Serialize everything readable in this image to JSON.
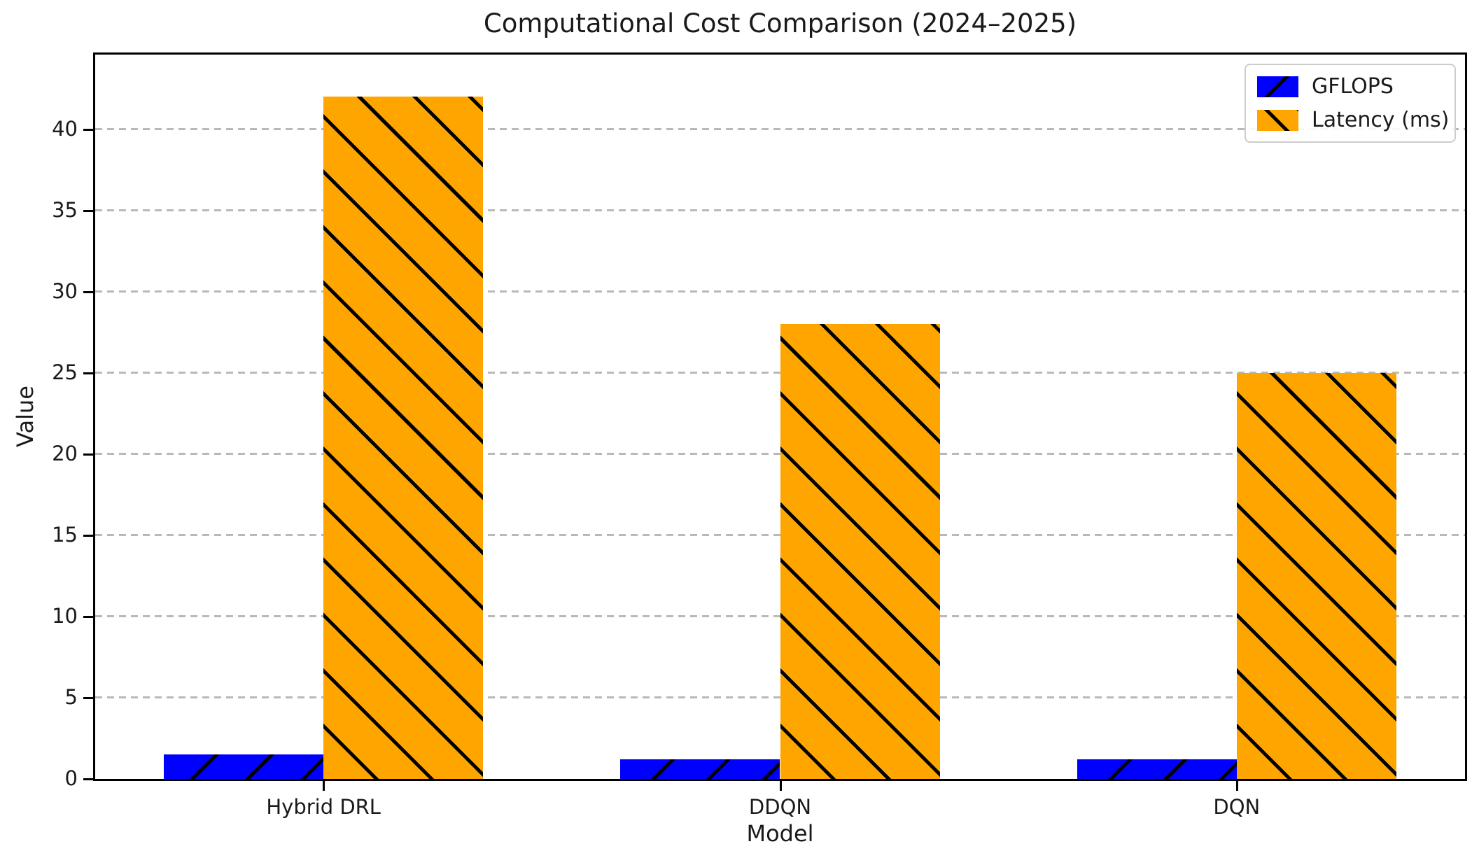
{
  "figure": {
    "title": "Computational Cost Comparison (2024–2025)",
    "xlabel": "Model",
    "ylabel": "Value"
  },
  "chart_data": {
    "type": "bar",
    "title": "Computational Cost Comparison (2024–2025)",
    "xlabel": "Model",
    "ylabel": "Value",
    "categories": [
      "Hybrid DRL",
      "DDQN",
      "DQN"
    ],
    "series": [
      {
        "name": "GFLOPS",
        "color": "#0000ff",
        "hatch": "/",
        "values": [
          1.5,
          1.2,
          1.2
        ]
      },
      {
        "name": "Latency (ms)",
        "color": "#ffa500",
        "hatch": "\\",
        "values": [
          42,
          28,
          25
        ]
      }
    ],
    "ylim": [
      0,
      44.6
    ],
    "yticks": [
      0,
      5,
      10,
      15,
      20,
      25,
      30,
      35,
      40
    ],
    "grid": "horizontal dashed",
    "gridline_color": "#b9b9b9",
    "legend_position": "upper right",
    "bar_width_fraction": 0.35,
    "hatch_color": "#000000"
  }
}
